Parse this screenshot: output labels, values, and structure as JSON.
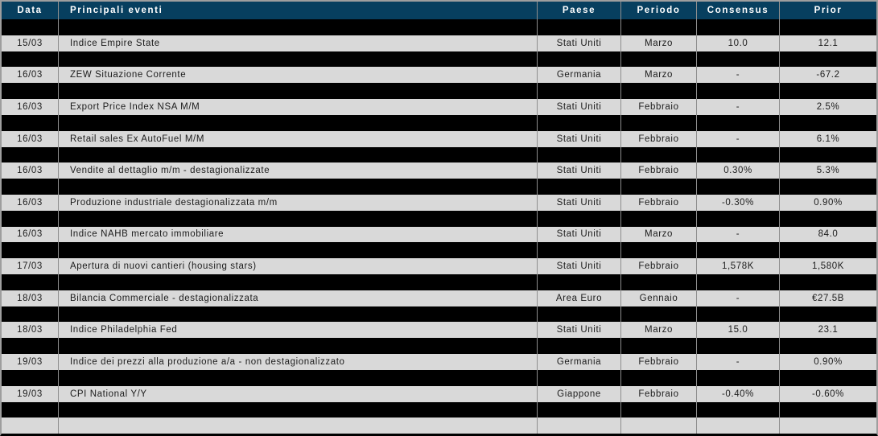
{
  "table": {
    "columns": [
      {
        "label": "Data"
      },
      {
        "label": "Principali eventi"
      },
      {
        "label": "Paese"
      },
      {
        "label": "Periodo"
      },
      {
        "label": "Consensus"
      },
      {
        "label": "Prior"
      }
    ],
    "rows": [
      {
        "date": "15/03",
        "event": "Indice Empire State",
        "country": "Stati Uniti",
        "period": "Marzo",
        "consensus": "10.0",
        "prior": "12.1"
      },
      {
        "date": "16/03",
        "event": "ZEW Situazione Corrente",
        "country": "Germania",
        "period": "Marzo",
        "consensus": "-",
        "prior": "-67.2"
      },
      {
        "date": "16/03",
        "event": "Export Price Index NSA M/M",
        "country": "Stati Uniti",
        "period": "Febbraio",
        "consensus": "-",
        "prior": "2.5%"
      },
      {
        "date": "16/03",
        "event": "Retail sales Ex AutoFuel M/M",
        "country": "Stati Uniti",
        "period": "Febbraio",
        "consensus": "-",
        "prior": "6.1%"
      },
      {
        "date": "16/03",
        "event": "Vendite al dettaglio m/m - destagionalizzate",
        "country": "Stati Uniti",
        "period": "Febbraio",
        "consensus": "0.30%",
        "prior": "5.3%"
      },
      {
        "date": "16/03",
        "event": "Produzione industriale destagionalizzata m/m",
        "country": "Stati Uniti",
        "period": "Febbraio",
        "consensus": "-0.30%",
        "prior": "0.90%"
      },
      {
        "date": "16/03",
        "event": "Indice NAHB mercato immobiliare",
        "country": "Stati Uniti",
        "period": "Marzo",
        "consensus": "-",
        "prior": "84.0"
      },
      {
        "date": "17/03",
        "event": "Apertura di nuovi cantieri (housing stars)",
        "country": "Stati Uniti",
        "period": "Febbraio",
        "consensus": "1,578K",
        "prior": "1,580K"
      },
      {
        "date": "18/03",
        "event": "Bilancia Commerciale - destagionalizzata",
        "country": "Area Euro",
        "period": "Gennaio",
        "consensus": "-",
        "prior": "€27.5B"
      },
      {
        "date": "18/03",
        "event": "Indice Philadelphia Fed",
        "country": "Stati Uniti",
        "period": "Marzo",
        "consensus": "15.0",
        "prior": "23.1"
      },
      {
        "date": "19/03",
        "event": "Indice dei prezzi alla produzione a/a -  non destagionalizzato",
        "country": "Germania",
        "period": "Febbraio",
        "consensus": "-",
        "prior": "0.90%"
      },
      {
        "date": "19/03",
        "event": "CPI National Y/Y",
        "country": "Giappone",
        "period": "Febbraio",
        "consensus": "-0.40%",
        "prior": "-0.60%"
      }
    ]
  },
  "colors": {
    "header_bg": "#073f5f",
    "header_text": "#ffffff",
    "row_black": "#000000",
    "row_gray": "#d9d9d9",
    "grid_line": "#8e8e8e",
    "outer_border": "#9e9e9e",
    "text": "#1c1c1c"
  }
}
